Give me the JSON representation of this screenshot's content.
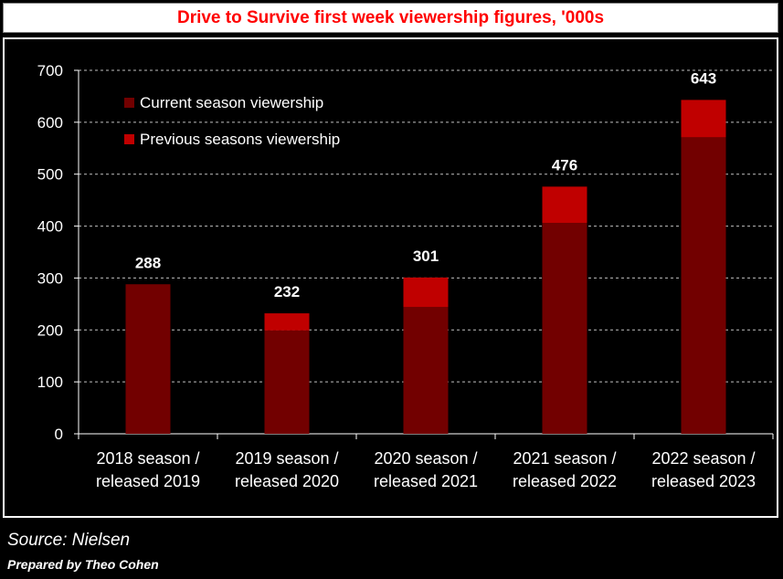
{
  "title": "Drive to Survive first week viewership figures, '000s",
  "source": "Source: Nielsen",
  "prepared_by": "Prepared by Theo Cohen",
  "colors": {
    "current": "#720000",
    "previous": "#c00000",
    "grid": "#bfbfbf",
    "background": "#000000",
    "text": "#ffffff"
  },
  "chart_data": {
    "type": "bar",
    "stacked": true,
    "categories": [
      [
        "2018 season /",
        "released 2019"
      ],
      [
        "2019 season /",
        "released 2020"
      ],
      [
        "2020 season /",
        "released 2021"
      ],
      [
        "2021 season /",
        "released 2022"
      ],
      [
        "2022 season /",
        "released 2023"
      ]
    ],
    "series": [
      {
        "name": "Current season viewership",
        "values": [
          288,
          199,
          244,
          406,
          571
        ]
      },
      {
        "name": "Previous seasons viewership",
        "values": [
          0,
          33,
          57,
          70,
          72
        ]
      }
    ],
    "totals": [
      288,
      232,
      301,
      476,
      643
    ],
    "ylim": [
      0,
      700
    ],
    "yticks": [
      0,
      100,
      200,
      300,
      400,
      500,
      600,
      700
    ],
    "grid": true,
    "legend": "top-left",
    "xlabel": "",
    "ylabel": ""
  }
}
